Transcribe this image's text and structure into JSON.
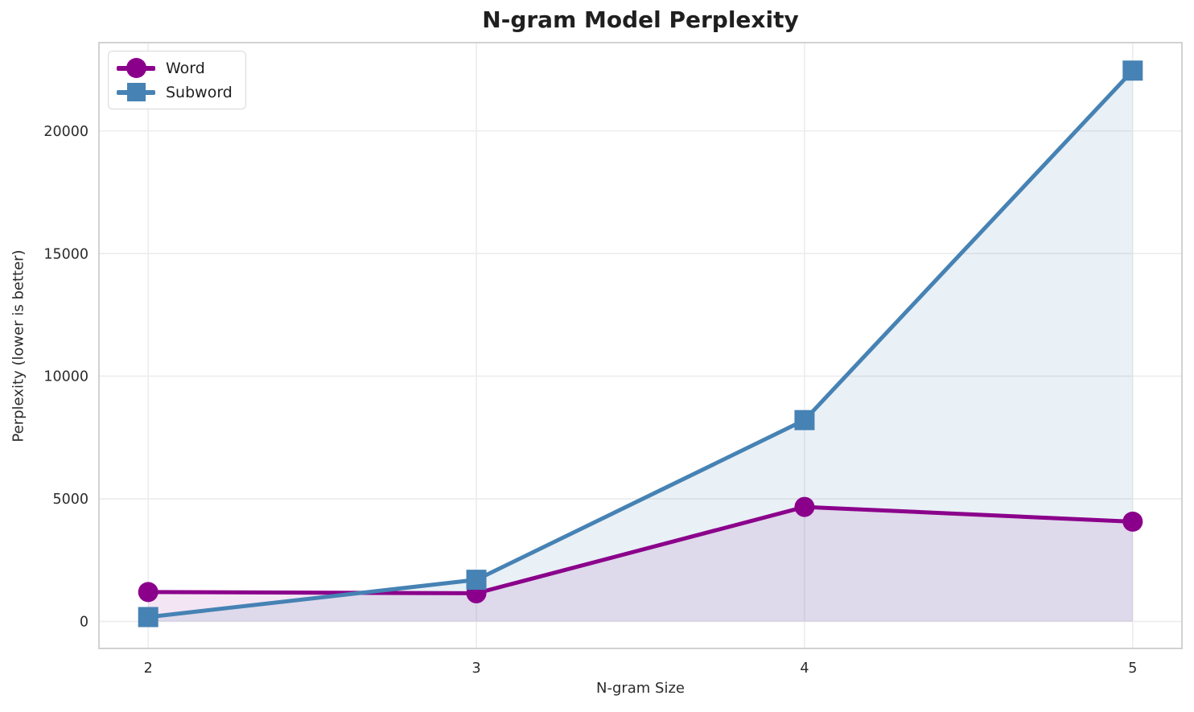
{
  "chart_data": {
    "type": "line",
    "title": "N-gram Model Perplexity",
    "xlabel": "N-gram Size",
    "ylabel": "Perplexity (lower is better)",
    "x": [
      2,
      3,
      4,
      5
    ],
    "series": [
      {
        "name": "Word",
        "marker": "circle",
        "color": "#8B008B",
        "fill_alpha": 0.1,
        "values": [
          1200,
          1150,
          4670,
          4070
        ]
      },
      {
        "name": "Subword",
        "marker": "square",
        "color": "#4682B4",
        "fill_alpha": 0.12,
        "values": [
          180,
          1700,
          8210,
          22460
        ]
      }
    ],
    "xticks": [
      2,
      3,
      4,
      5
    ],
    "yticks": [
      0,
      5000,
      10000,
      15000,
      20000
    ],
    "xlim": [
      1.85,
      5.15
    ],
    "ylim": [
      -1100,
      23600
    ],
    "grid": true,
    "area_fill_to_zero": true,
    "legend_position": "upper left",
    "style": {
      "background": "#ffffff",
      "gridline_color": "#ececec",
      "border_color": "#d2d2d2",
      "text_color": "#2b2b2b",
      "title_color": "#1f1f1f"
    }
  }
}
